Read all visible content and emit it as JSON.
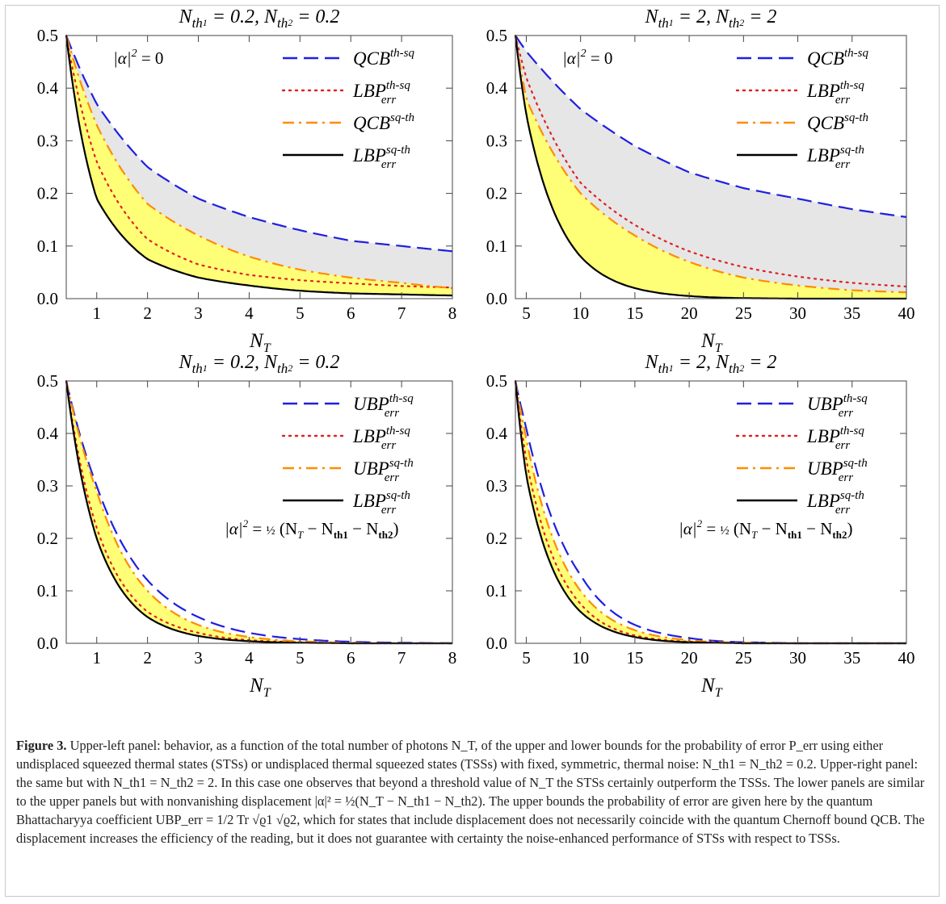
{
  "chart_data": [
    {
      "type": "line",
      "title": "N_th1 = 0.2, N_th2 = 0.2",
      "xlabel": "N_T",
      "ylabel": "",
      "xlim": [
        0.4,
        8
      ],
      "ylim": [
        0,
        0.5
      ],
      "xticks": [
        "1",
        "2",
        "3",
        "4",
        "5",
        "6",
        "7",
        "8"
      ],
      "yticks": [
        "0.0",
        "0.1",
        "0.2",
        "0.3",
        "0.4",
        "0.5"
      ],
      "annotation": "|α|² = 0",
      "legend": "top-right",
      "fill": "gray between QCB^{th-sq} and QCB^{sq-th}; yellow between QCB^{sq-th} and LBP_err^{sq-th}",
      "series": [
        {
          "name": "QCB^{th-sq}",
          "style": "dashed",
          "color": "#1f1fe0",
          "x": [
            0.4,
            1,
            2,
            3,
            4,
            5,
            6,
            7,
            8
          ],
          "y": [
            0.5,
            0.37,
            0.25,
            0.19,
            0.155,
            0.13,
            0.11,
            0.1,
            0.09
          ]
        },
        {
          "name": "LBP_err^{th-sq}",
          "style": "dotted",
          "color": "#e02020",
          "x": [
            0.4,
            1,
            2,
            3,
            4,
            5,
            6,
            7,
            8
          ],
          "y": [
            0.5,
            0.26,
            0.113,
            0.065,
            0.045,
            0.035,
            0.029,
            0.024,
            0.021
          ]
        },
        {
          "name": "QCB^{sq-th}",
          "style": "dashdot",
          "color": "#ff8c00",
          "x": [
            0.4,
            1,
            2,
            3,
            4,
            5,
            6,
            7,
            8
          ],
          "y": [
            0.5,
            0.33,
            0.18,
            0.12,
            0.08,
            0.055,
            0.04,
            0.03,
            0.02
          ]
        },
        {
          "name": "LBP_err^{sq-th}",
          "style": "solid",
          "color": "#000000",
          "x": [
            0.4,
            1,
            2,
            3,
            4,
            5,
            6,
            7,
            8
          ],
          "y": [
            0.5,
            0.19,
            0.075,
            0.04,
            0.025,
            0.015,
            0.01,
            0.008,
            0.006
          ]
        }
      ]
    },
    {
      "type": "line",
      "title": "N_th1 = 2, N_th2 = 2",
      "xlabel": "N_T",
      "ylabel": "",
      "xlim": [
        4,
        40
      ],
      "ylim": [
        0,
        0.5
      ],
      "xticks": [
        "5",
        "10",
        "15",
        "20",
        "25",
        "30",
        "35",
        "40"
      ],
      "yticks": [
        "0.0",
        "0.1",
        "0.2",
        "0.3",
        "0.4",
        "0.5"
      ],
      "annotation": "|α|² = 0",
      "legend": "top-right",
      "fill": "gray between QCB^{th-sq} and QCB^{sq-th}; yellow between QCB^{sq-th} and LBP_err^{sq-th}",
      "series": [
        {
          "name": "QCB^{th-sq}",
          "style": "dashed",
          "color": "#1f1fe0",
          "x": [
            4,
            5,
            10,
            15,
            20,
            25,
            30,
            35,
            40
          ],
          "y": [
            0.5,
            0.47,
            0.36,
            0.29,
            0.24,
            0.21,
            0.19,
            0.17,
            0.155
          ]
        },
        {
          "name": "LBP_err^{th-sq}",
          "style": "dotted",
          "color": "#e02020",
          "x": [
            4,
            5,
            10,
            15,
            20,
            25,
            30,
            35,
            40
          ],
          "y": [
            0.5,
            0.42,
            0.22,
            0.14,
            0.09,
            0.06,
            0.042,
            0.03,
            0.023
          ]
        },
        {
          "name": "QCB^{sq-th}",
          "style": "dashdot",
          "color": "#ff8c00",
          "x": [
            4,
            5,
            10,
            15,
            20,
            25,
            30,
            35,
            40
          ],
          "y": [
            0.5,
            0.38,
            0.2,
            0.12,
            0.07,
            0.04,
            0.025,
            0.016,
            0.012
          ]
        },
        {
          "name": "LBP_err^{sq-th}",
          "style": "solid",
          "color": "#000000",
          "x": [
            4,
            5,
            10,
            15,
            20,
            25,
            30,
            35,
            40
          ],
          "y": [
            0.5,
            0.35,
            0.08,
            0.02,
            0.005,
            0.001,
            0.0,
            0.0,
            0.0
          ]
        }
      ]
    },
    {
      "type": "line",
      "title": "N_th1 = 0.2, N_th2 = 0.2",
      "xlabel": "N_T",
      "ylabel": "",
      "xlim": [
        0.4,
        8
      ],
      "ylim": [
        0,
        0.5
      ],
      "xticks": [
        "1",
        "2",
        "3",
        "4",
        "5",
        "6",
        "7",
        "8"
      ],
      "yticks": [
        "0.0",
        "0.1",
        "0.2",
        "0.3",
        "0.4",
        "0.5"
      ],
      "annotation": "|α|² = ½ (N_T − N_th1 − N_th2)",
      "legend": "top-right",
      "fill": "yellow between UBP_err^{sq-th} and LBP_err^{sq-th}",
      "series": [
        {
          "name": "UBP_err^{th-sq}",
          "style": "dashed",
          "color": "#1f1fe0",
          "x": [
            0.4,
            1,
            2,
            3,
            4,
            5,
            6,
            7,
            8
          ],
          "y": [
            0.5,
            0.3,
            0.12,
            0.05,
            0.02,
            0.008,
            0.003,
            0.001,
            0.0
          ]
        },
        {
          "name": "LBP_err^{th-sq}",
          "style": "dotted",
          "color": "#e02020",
          "x": [
            0.4,
            1,
            2,
            3,
            4,
            5,
            6,
            7,
            8
          ],
          "y": [
            0.5,
            0.22,
            0.06,
            0.02,
            0.006,
            0.002,
            0.0,
            0.0,
            0.0
          ]
        },
        {
          "name": "UBP_err^{sq-th}",
          "style": "dashdot",
          "color": "#ff8c00",
          "x": [
            0.4,
            1,
            2,
            3,
            4,
            5,
            6,
            7,
            8
          ],
          "y": [
            0.5,
            0.29,
            0.1,
            0.035,
            0.012,
            0.004,
            0.001,
            0.0,
            0.0
          ]
        },
        {
          "name": "LBP_err^{sq-th}",
          "style": "solid",
          "color": "#000000",
          "x": [
            0.4,
            1,
            2,
            3,
            4,
            5,
            6,
            7,
            8
          ],
          "y": [
            0.5,
            0.2,
            0.05,
            0.014,
            0.004,
            0.001,
            0.0,
            0.0,
            0.0
          ]
        }
      ]
    },
    {
      "type": "line",
      "title": "N_th1 = 2, N_th2 = 2",
      "xlabel": "N_T",
      "ylabel": "",
      "xlim": [
        4,
        40
      ],
      "ylim": [
        0,
        0.5
      ],
      "xticks": [
        "5",
        "10",
        "15",
        "20",
        "25",
        "30",
        "35",
        "40"
      ],
      "yticks": [
        "0.0",
        "0.1",
        "0.2",
        "0.3",
        "0.4",
        "0.5"
      ],
      "annotation": "|α|² = ½ (N_T − N_th1 − N_th2)",
      "legend": "top-right",
      "fill": "yellow between UBP_err^{sq-th} and LBP_err^{sq-th}",
      "series": [
        {
          "name": "UBP_err^{th-sq}",
          "style": "dashed",
          "color": "#1f1fe0",
          "x": [
            4,
            5,
            10,
            15,
            20,
            25,
            30,
            35,
            40
          ],
          "y": [
            0.5,
            0.41,
            0.13,
            0.035,
            0.01,
            0.002,
            0.0,
            0.0,
            0.0
          ]
        },
        {
          "name": "LBP_err^{th-sq}",
          "style": "dotted",
          "color": "#e02020",
          "x": [
            4,
            5,
            10,
            15,
            20,
            25,
            30,
            35,
            40
          ],
          "y": [
            0.5,
            0.35,
            0.075,
            0.015,
            0.003,
            0.0,
            0.0,
            0.0,
            0.0
          ]
        },
        {
          "name": "UBP_err^{sq-th}",
          "style": "dashdot",
          "color": "#ff8c00",
          "x": [
            4,
            5,
            10,
            15,
            20,
            25,
            30,
            35,
            40
          ],
          "y": [
            0.5,
            0.39,
            0.1,
            0.025,
            0.006,
            0.001,
            0.0,
            0.0,
            0.0
          ]
        },
        {
          "name": "LBP_err^{sq-th}",
          "style": "solid",
          "color": "#000000",
          "x": [
            4,
            5,
            10,
            15,
            20,
            25,
            30,
            35,
            40
          ],
          "y": [
            0.5,
            0.32,
            0.06,
            0.012,
            0.002,
            0.0,
            0.0,
            0.0,
            0.0
          ]
        }
      ]
    }
  ],
  "colors": {
    "gray_fill": "#e6e6e6",
    "yellow_fill": "#ffff77"
  },
  "caption": {
    "label": "Figure 3.",
    "text": "Upper-left panel: behavior, as a function of the total number of photons N_T, of the upper and lower bounds for the probability of error P_err using either undisplaced squeezed thermal states (STSs) or undisplaced thermal squeezed states (TSSs) with fixed, symmetric, thermal noise: N_th1 = N_th2 = 0.2. Upper-right panel: the same but with N_th1 = N_th2 = 2. In this case one observes that beyond a threshold value of N_T the STSs certainly outperform the TSSs. The lower panels are similar to the upper panels but with nonvanishing displacement |α|² = ½(N_T − N_th1 − N_th2). The upper bounds the probability of error are given here by the quantum Bhattacharyya coefficient UBP_err = 1/2 Tr √ϱ1 √ϱ2, which for states that include displacement does not necessarily coincide with the quantum Chernoff bound QCB. The displacement increases the efficiency of the reading, but it does not guarantee with certainty the noise-enhanced performance of STSs with respect to TSSs."
  }
}
